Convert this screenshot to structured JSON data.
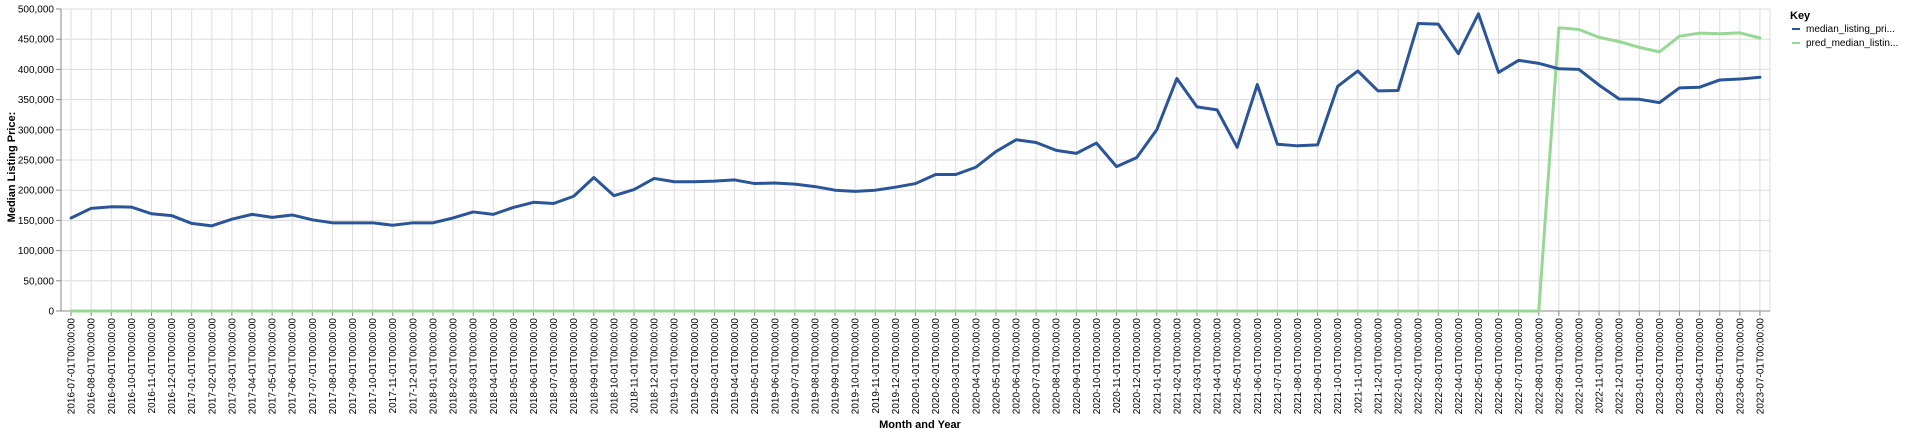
{
  "chart_data": {
    "type": "line",
    "xlabel": "Month and Year",
    "ylabel": "Median Listing Price:",
    "ylim": [
      0,
      500000
    ],
    "yticks": [
      "0",
      "50,000",
      "100,000",
      "150,000",
      "200,000",
      "250,000",
      "300,000",
      "350,000",
      "400,000",
      "450,000",
      "500,000"
    ],
    "x": [
      "2016-07-01T00:00:00",
      "2016-08-01T00:00:00",
      "2016-09-01T00:00:00",
      "2016-10-01T00:00:00",
      "2016-11-01T00:00:00",
      "2016-12-01T00:00:00",
      "2017-01-01T00:00:00",
      "2017-02-01T00:00:00",
      "2017-03-01T00:00:00",
      "2017-04-01T00:00:00",
      "2017-05-01T00:00:00",
      "2017-06-01T00:00:00",
      "2017-07-01T00:00:00",
      "2017-08-01T00:00:00",
      "2017-09-01T00:00:00",
      "2017-10-01T00:00:00",
      "2017-11-01T00:00:00",
      "2017-12-01T00:00:00",
      "2018-01-01T00:00:00",
      "2018-02-01T00:00:00",
      "2018-03-01T00:00:00",
      "2018-04-01T00:00:00",
      "2018-05-01T00:00:00",
      "2018-06-01T00:00:00",
      "2018-07-01T00:00:00",
      "2018-08-01T00:00:00",
      "2018-09-01T00:00:00",
      "2018-10-01T00:00:00",
      "2018-11-01T00:00:00",
      "2018-12-01T00:00:00",
      "2019-01-01T00:00:00",
      "2019-02-01T00:00:00",
      "2019-03-01T00:00:00",
      "2019-04-01T00:00:00",
      "2019-05-01T00:00:00",
      "2019-06-01T00:00:00",
      "2019-07-01T00:00:00",
      "2019-08-01T00:00:00",
      "2019-09-01T00:00:00",
      "2019-10-01T00:00:00",
      "2019-11-01T00:00:00",
      "2019-12-01T00:00:00",
      "2020-01-01T00:00:00",
      "2020-02-01T00:00:00",
      "2020-03-01T00:00:00",
      "2020-04-01T00:00:00",
      "2020-05-01T00:00:00",
      "2020-06-01T00:00:00",
      "2020-07-01T00:00:00",
      "2020-08-01T00:00:00",
      "2020-09-01T00:00:00",
      "2020-10-01T00:00:00",
      "2020-11-01T00:00:00",
      "2020-12-01T00:00:00",
      "2021-01-01T00:00:00",
      "2021-02-01T00:00:00",
      "2021-03-01T00:00:00",
      "2021-04-01T00:00:00",
      "2021-05-01T00:00:00",
      "2021-06-01T00:00:00",
      "2021-07-01T00:00:00",
      "2021-08-01T00:00:00",
      "2021-09-01T00:00:00",
      "2021-10-01T00:00:00",
      "2021-11-01T00:00:00",
      "2021-12-01T00:00:00",
      "2022-01-01T00:00:00",
      "2022-02-01T00:00:00",
      "2022-03-01T00:00:00",
      "2022-04-01T00:00:00",
      "2022-05-01T00:00:00",
      "2022-06-01T00:00:00",
      "2022-07-01T00:00:00",
      "2022-08-01T00:00:00",
      "2022-09-01T00:00:00",
      "2022-10-01T00:00:00",
      "2022-11-01T00:00:00",
      "2022-12-01T00:00:00",
      "2023-01-01T00:00:00",
      "2023-02-01T00:00:00",
      "2023-03-01T00:00:00",
      "2023-04-01T00:00:00",
      "2023-05-01T00:00:00",
      "2023-06-01T00:00:00",
      "2023-07-01T00:00:00"
    ],
    "series": [
      {
        "name": "median_listing_pri...",
        "color": "#2a5599",
        "values": [
          154000,
          170000,
          172500,
          172000,
          161000,
          158000,
          145000,
          141000,
          152000,
          160000,
          155000,
          159000,
          151000,
          146000,
          146000,
          146000,
          142000,
          146000,
          146000,
          154000,
          164000,
          160000,
          171500,
          180000,
          178000,
          190000,
          221000,
          191000,
          201000,
          219500,
          214000,
          214000,
          215000,
          217000,
          211000,
          212000,
          210000,
          206000,
          200000,
          198000,
          200000,
          205000,
          211000,
          226000,
          226000,
          238000,
          264000,
          283500,
          279000,
          266000,
          261000,
          278000,
          239000,
          254000,
          300000,
          385000,
          338000,
          333000,
          271000,
          375000,
          276000,
          273500,
          275000,
          372000,
          397500,
          364500,
          365000,
          476000,
          475000,
          426000,
          492000,
          395000,
          415000,
          410000,
          401000,
          400000,
          374000,
          351000,
          350500,
          345000,
          369500,
          370500,
          382500,
          384000,
          387000
        ]
      },
      {
        "name": "pred_median_listin...",
        "color": "#98d895",
        "values": [
          0,
          0,
          0,
          0,
          0,
          0,
          0,
          0,
          0,
          0,
          0,
          0,
          0,
          0,
          0,
          0,
          0,
          0,
          0,
          0,
          0,
          0,
          0,
          0,
          0,
          0,
          0,
          0,
          0,
          0,
          0,
          0,
          0,
          0,
          0,
          0,
          0,
          0,
          0,
          0,
          0,
          0,
          0,
          0,
          0,
          0,
          0,
          0,
          0,
          0,
          0,
          0,
          0,
          0,
          0,
          0,
          0,
          0,
          0,
          0,
          0,
          0,
          0,
          0,
          0,
          0,
          0,
          0,
          0,
          0,
          0,
          0,
          0,
          0,
          469000,
          466000,
          453000,
          446000,
          436500,
          429000,
          455000,
          460000,
          459000,
          460500,
          452000
        ]
      }
    ],
    "legend": {
      "title": "Key",
      "placement": "right"
    },
    "grid": true
  }
}
